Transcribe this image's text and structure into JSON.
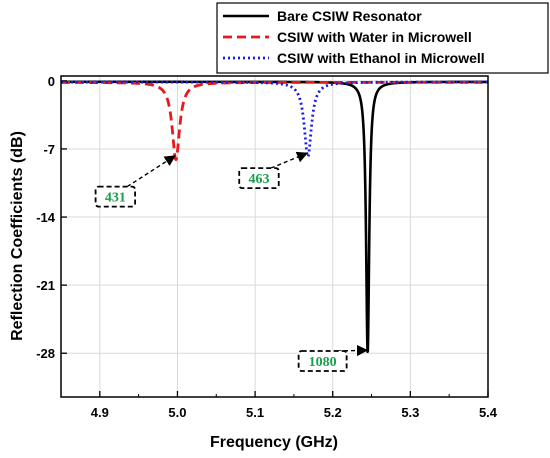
{
  "chart_data": {
    "type": "line",
    "xlabel": "Frequency  (GHz)",
    "ylabel": "Reflection Coefficients  (dB)",
    "xlim": [
      4.85,
      5.4
    ],
    "ylim": [
      -32.5,
      0.5
    ],
    "xticks": [
      "4.9",
      "5.0",
      "5.1",
      "5.2",
      "5.3",
      "5.4"
    ],
    "xtick_values": [
      4.9,
      5.0,
      5.1,
      5.2,
      5.3,
      5.4
    ],
    "yticks": [
      "0",
      "-7",
      "-14",
      "-21",
      "-28"
    ],
    "ytick_values": [
      0,
      -7,
      -14,
      -21,
      -28
    ],
    "grid": true,
    "legend_position": "top-right",
    "series": [
      {
        "name": "Bare CSIW Resonator",
        "style": "solid",
        "color": "#000000",
        "resonance_ghz": 5.245,
        "min_db": -28.0,
        "baseline_db": -0.1,
        "half_width_ghz": 0.00243
      },
      {
        "name": "CSIW with Water in Microwell",
        "style": "dashed",
        "color": "#e8191b",
        "resonance_ghz": 4.998,
        "min_db": -8.1,
        "baseline_db": -0.15,
        "half_width_ghz": 0.0058
      },
      {
        "name": "CSIW with Ethanol in Microwell",
        "style": "dotted",
        "color": "#1a1ae6",
        "resonance_ghz": 5.168,
        "min_db": -7.8,
        "baseline_db": -0.12,
        "half_width_ghz": 0.0056
      }
    ],
    "annotations": [
      {
        "text": "431",
        "target_x": 4.995,
        "target_y": -7.8,
        "label_x": 4.92,
        "label_y": -11.9
      },
      {
        "text": "463",
        "target_x": 5.165,
        "target_y": -7.5,
        "label_x": 5.105,
        "label_y": -10.0
      },
      {
        "text": "1080",
        "target_x": 5.242,
        "target_y": -27.7,
        "label_x": 5.187,
        "label_y": -28.8
      }
    ],
    "annotation_color": "#1a9f4c"
  }
}
